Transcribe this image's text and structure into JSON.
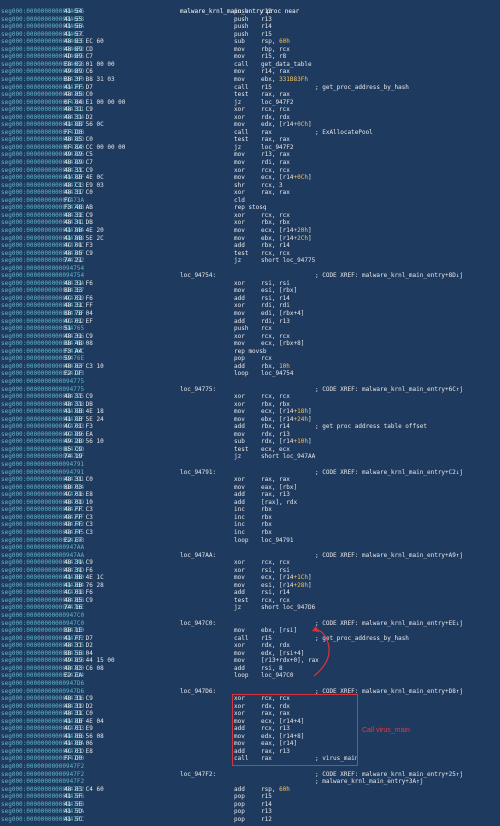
{
  "title": "malware_krnl_main_entry proc near",
  "annotation": "Call virus_main",
  "colors": {
    "background": "#1f3a5f",
    "address": "#5fb7c6",
    "number": "#f3c35d",
    "annotation": "#e33a43"
  },
  "lines": [
    {
      "a": "seg000:00000000000946E6",
      "b": "41 54",
      "m": "push",
      "o": "r12"
    },
    {
      "a": "seg000:00000000000946E8",
      "b": "41 55",
      "m": "push",
      "o": "r13"
    },
    {
      "a": "seg000:00000000000946EA",
      "b": "41 56",
      "m": "push",
      "o": "r14"
    },
    {
      "a": "seg000:00000000000946EC",
      "b": "41 57",
      "m": "push",
      "o": "r15"
    },
    {
      "a": "seg000:00000000000946EE",
      "b": "48 83 EC 60",
      "m": "sub",
      "o": "rsp, 60h"
    },
    {
      "a": "seg000:00000000000946F2",
      "b": "48 89 CD",
      "m": "mov",
      "o": "rbp, rcx"
    },
    {
      "a": "seg000:00000000000946F5",
      "b": "4D 89 C7",
      "m": "mov",
      "o": "r15, r8"
    },
    {
      "a": "seg000:00000000000946F8",
      "b": "E8 02 01 00 00",
      "m": "call",
      "o": "get_data_table"
    },
    {
      "a": "seg000:00000000000946FD",
      "b": "49 89 C6",
      "m": "mov",
      "o": "r14, rax"
    },
    {
      "a": "seg000:0000000000094700",
      "b": "BB 3F B8 31 03",
      "m": "mov",
      "o": "ebx, 331B83Fh"
    },
    {
      "a": "seg000:0000000000094705",
      "b": "41 FF D7",
      "m": "call",
      "o": "r15",
      "c": "; get_proc_address_by_hash"
    },
    {
      "a": "seg000:0000000000094708",
      "b": "48 85 C0",
      "m": "test",
      "o": "rax, rax"
    },
    {
      "a": "seg000:000000000009470B",
      "b": "0F 84 E1 00 00 00",
      "m": "jz",
      "o": "loc_947F2"
    },
    {
      "a": "seg000:0000000000094711",
      "b": "48 31 C9",
      "m": "xor",
      "o": "rcx, rcx"
    },
    {
      "a": "seg000:0000000000094714",
      "b": "48 31 D2",
      "m": "xor",
      "o": "rdx, rdx"
    },
    {
      "a": "seg000:0000000000094717",
      "b": "41 8B 56 0C",
      "m": "mov",
      "o": "edx, [r14+0Ch]"
    },
    {
      "a": "seg000:000000000009471B",
      "b": "FF D0",
      "m": "call",
      "o": "rax",
      "c": "; ExAllocatePool"
    },
    {
      "a": "seg000:000000000009471D",
      "b": "48 85 C0",
      "m": "test",
      "o": "rax, rax"
    },
    {
      "a": "seg000:0000000000094720",
      "b": "0F 84 CC 00 00 00",
      "m": "jz",
      "o": "loc_947F2"
    },
    {
      "a": "seg000:0000000000094726",
      "b": "49 89 C5",
      "m": "mov",
      "o": "r13, rax"
    },
    {
      "a": "seg000:0000000000094729",
      "b": "48 89 C7",
      "m": "mov",
      "o": "rdi, rax"
    },
    {
      "a": "seg000:000000000009472C",
      "b": "48 31 C9",
      "m": "xor",
      "o": "rcx, rcx"
    },
    {
      "a": "seg000:000000000009472F",
      "b": "41 8B 4E 0C",
      "m": "mov",
      "o": "ecx, [r14+0Ch]"
    },
    {
      "a": "seg000:0000000000094733",
      "b": "48 C1 E9 03",
      "m": "shr",
      "o": "rcx, 3"
    },
    {
      "a": "seg000:0000000000094737",
      "b": "48 31 C0",
      "m": "xor",
      "o": "rax, rax"
    },
    {
      "a": "seg000:000000000009473A",
      "b": "FC",
      "m": "cld"
    },
    {
      "a": "seg000:000000000009473B",
      "b": "F3 48 AB",
      "m": "rep stosq"
    },
    {
      "a": "seg000:000000000009473E",
      "b": "48 31 C9",
      "m": "xor",
      "o": "rcx, rcx"
    },
    {
      "a": "seg000:0000000000094741",
      "b": "48 31 DB",
      "m": "xor",
      "o": "rbx, rbx"
    },
    {
      "a": "seg000:0000000000094744",
      "b": "41 8B 4E 20",
      "m": "mov",
      "o": "ecx, [r14+20h]"
    },
    {
      "a": "seg000:0000000000094748",
      "b": "41 8B 5E 2C",
      "m": "mov",
      "o": "ebx, [r14+2Ch]"
    },
    {
      "a": "seg000:000000000009474C",
      "b": "4C 01 F3",
      "m": "add",
      "o": "rbx, r14"
    },
    {
      "a": "seg000:000000000009474F",
      "b": "48 85 C9",
      "m": "test",
      "o": "rcx, rcx"
    },
    {
      "a": "seg000:0000000000094752",
      "b": "74 21",
      "m": "jz",
      "o": "short loc_94775"
    },
    {
      "a": "seg000:0000000000094754",
      "b": ""
    },
    {
      "a": "seg000:0000000000094754",
      "l": "loc_94754:",
      "c": "; CODE XREF: malware_krnl_main_entry+8D↓j"
    },
    {
      "a": "seg000:0000000000094754",
      "b": "48 31 F6",
      "m": "xor",
      "o": "rsi, rsi"
    },
    {
      "a": "seg000:0000000000094757",
      "b": "8B 33",
      "m": "mov",
      "o": "esi, [rbx]"
    },
    {
      "a": "seg000:0000000000094759",
      "b": "4C 01 F6",
      "m": "add",
      "o": "rsi, r14"
    },
    {
      "a": "seg000:000000000009475C",
      "b": "48 31 FF",
      "m": "xor",
      "o": "rdi, rdi"
    },
    {
      "a": "seg000:000000000009475F",
      "b": "8B 7B 04",
      "m": "mov",
      "o": "edi, [rbx+4]"
    },
    {
      "a": "seg000:0000000000094762",
      "b": "4C 01 EF",
      "m": "add",
      "o": "rdi, r13"
    },
    {
      "a": "seg000:0000000000094765",
      "b": "51",
      "m": "push",
      "o": "rcx"
    },
    {
      "a": "seg000:0000000000094766",
      "b": "48 31 C9",
      "m": "xor",
      "o": "rcx, rcx"
    },
    {
      "a": "seg000:0000000000094769",
      "b": "8B 4B 08",
      "m": "mov",
      "o": "ecx, [rbx+8]"
    },
    {
      "a": "seg000:000000000009476C",
      "b": "F3 A4",
      "m": "rep movsb"
    },
    {
      "a": "seg000:000000000009476E",
      "b": "59",
      "m": "pop",
      "o": "rcx"
    },
    {
      "a": "seg000:000000000009476F",
      "b": "48 83 C3 10",
      "m": "add",
      "o": "rbx, 10h"
    },
    {
      "a": "seg000:0000000000094773",
      "b": "E2 DF",
      "m": "loop",
      "o": "loc_94754"
    },
    {
      "a": "seg000:0000000000094775",
      "b": ""
    },
    {
      "a": "seg000:0000000000094775",
      "l": "loc_94775:",
      "c": "; CODE XREF: malware_krnl_main_entry+6C↑j"
    },
    {
      "a": "seg000:0000000000094775",
      "b": "48 31 C9",
      "m": "xor",
      "o": "rcx, rcx"
    },
    {
      "a": "seg000:0000000000094778",
      "b": "48 31 DB",
      "m": "xor",
      "o": "rbx, rbx"
    },
    {
      "a": "seg000:000000000009477B",
      "b": "41 8B 4E 18",
      "m": "mov",
      "o": "ecx, [r14+18h]"
    },
    {
      "a": "seg000:000000000009477F",
      "b": "41 8B 5E 24",
      "m": "mov",
      "o": "ebx, [r14+24h]"
    },
    {
      "a": "seg000:0000000000094783",
      "b": "4C 01 F3",
      "m": "add",
      "o": "rbx, r14",
      "c": "; get proc address table offset"
    },
    {
      "a": "seg000:0000000000094786",
      "b": "4C 89 EA",
      "m": "mov",
      "o": "rdx, r13"
    },
    {
      "a": "seg000:0000000000094789",
      "b": "49 2B 56 10",
      "m": "sub",
      "o": "rdx, [r14+10h]"
    },
    {
      "a": "seg000:000000000009478D",
      "b": "85 C9",
      "m": "test",
      "o": "ecx, ecx"
    },
    {
      "a": "seg000:000000000009478F",
      "b": "74 19",
      "m": "jz",
      "o": "short loc_947AA"
    },
    {
      "a": "seg000:0000000000094791",
      "b": ""
    },
    {
      "a": "seg000:0000000000094791",
      "l": "loc_94791:",
      "c": "; CODE XREF: malware_krnl_main_entry+C2↓j"
    },
    {
      "a": "seg000:0000000000094791",
      "b": "48 31 C0",
      "m": "xor",
      "o": "rax, rax"
    },
    {
      "a": "seg000:0000000000094794",
      "b": "8B 03",
      "m": "mov",
      "o": "eax, [rbx]"
    },
    {
      "a": "seg000:0000000000094796",
      "b": "4C 01 E8",
      "m": "add",
      "o": "rax, r13"
    },
    {
      "a": "seg000:0000000000094799",
      "b": "48 01 10",
      "m": "add",
      "o": "[rax], rdx"
    },
    {
      "a": "seg000:000000000009479C",
      "b": "48 FF C3",
      "m": "inc",
      "o": "rbx"
    },
    {
      "a": "seg000:000000000009479F",
      "b": "48 FF C3",
      "m": "inc",
      "o": "rbx"
    },
    {
      "a": "seg000:00000000000947A2",
      "b": "48 FF C3",
      "m": "inc",
      "o": "rbx"
    },
    {
      "a": "seg000:00000000000947A5",
      "b": "48 FF C3",
      "m": "inc",
      "o": "rbx"
    },
    {
      "a": "seg000:00000000000947A8",
      "b": "E2 E7",
      "m": "loop",
      "o": "loc_94791"
    },
    {
      "a": "seg000:00000000000947AA",
      "b": ""
    },
    {
      "a": "seg000:00000000000947AA",
      "l": "loc_947AA:",
      "c": "; CODE XREF: malware_krnl_main_entry+A9↑j"
    },
    {
      "a": "seg000:00000000000947AA",
      "b": "48 31 C9",
      "m": "xor",
      "o": "rcx, rcx"
    },
    {
      "a": "seg000:00000000000947AD",
      "b": "48 31 F6",
      "m": "xor",
      "o": "rsi, rsi"
    },
    {
      "a": "seg000:00000000000947B0",
      "b": "41 8B 4E 1C",
      "m": "mov",
      "o": "ecx, [r14+1Ch]"
    },
    {
      "a": "seg000:00000000000947B4",
      "b": "41 8B 76 28",
      "m": "mov",
      "o": "esi, [r14+28h]"
    },
    {
      "a": "seg000:00000000000947B8",
      "b": "4C 01 F6",
      "m": "add",
      "o": "rsi, r14"
    },
    {
      "a": "seg000:00000000000947BB",
      "b": "48 85 C9",
      "m": "test",
      "o": "rcx, rcx"
    },
    {
      "a": "seg000:00000000000947BE",
      "b": "74 16",
      "m": "jz",
      "o": "short loc_947D6"
    },
    {
      "a": "seg000:00000000000947C0",
      "b": ""
    },
    {
      "a": "seg000:00000000000947C0",
      "l": "loc_947C0:",
      "c": "; CODE XREF: malware_krnl_main_entry+EE↓j"
    },
    {
      "a": "seg000:00000000000947C0",
      "b": "8B 1E",
      "m": "mov",
      "o": "ebx, [rsi]"
    },
    {
      "a": "seg000:00000000000947C2",
      "b": "41 FF D7",
      "m": "call",
      "o": "r15",
      "c": "; get_proc_address_by_hash"
    },
    {
      "a": "seg000:00000000000947C5",
      "b": "48 31 D2",
      "m": "xor",
      "o": "rdx, rdx"
    },
    {
      "a": "seg000:00000000000947C8",
      "b": "8B 56 04",
      "m": "mov",
      "o": "edx, [rsi+4]"
    },
    {
      "a": "seg000:00000000000947CB",
      "b": "49 89 44 15 00",
      "m": "mov",
      "o": "[r13+rdx+0], rax"
    },
    {
      "a": "seg000:00000000000947D0",
      "b": "48 83 C6 08",
      "m": "add",
      "o": "rsi, 8"
    },
    {
      "a": "seg000:00000000000947D4",
      "b": "E2 EA",
      "m": "loop",
      "o": "loc_947C0"
    },
    {
      "a": "seg000:00000000000947D6",
      "b": ""
    },
    {
      "a": "seg000:00000000000947D6",
      "l": "loc_947D6:",
      "c": "; CODE XREF: malware_krnl_main_entry+D8↑j"
    },
    {
      "a": "seg000:00000000000947D6",
      "b": "48 31 C9",
      "m": "xor",
      "o": "rcx, rcx"
    },
    {
      "a": "seg000:00000000000947D9",
      "b": "48 31 D2",
      "m": "xor",
      "o": "rdx, rdx"
    },
    {
      "a": "seg000:00000000000947DC",
      "b": "48 31 C0",
      "m": "xor",
      "o": "rax, rax"
    },
    {
      "a": "seg000:00000000000947DF",
      "b": "41 8B 4E 04",
      "m": "mov",
      "o": "ecx, [r14+4]"
    },
    {
      "a": "seg000:00000000000947E3",
      "b": "4C 01 E9",
      "m": "add",
      "o": "rcx, r13"
    },
    {
      "a": "seg000:00000000000947E6",
      "b": "41 8B 56 08",
      "m": "mov",
      "o": "edx, [r14+8]"
    },
    {
      "a": "seg000:00000000000947EA",
      "b": "41 8B 06",
      "m": "mov",
      "o": "eax, [r14]"
    },
    {
      "a": "seg000:00000000000947ED",
      "b": "4C 01 E8",
      "m": "add",
      "o": "rax, r13"
    },
    {
      "a": "seg000:00000000000947F0",
      "b": "FF D0",
      "m": "call",
      "o": "rax",
      "c": "; virus_main"
    },
    {
      "a": "seg000:00000000000947F2",
      "b": ""
    },
    {
      "a": "seg000:00000000000947F2",
      "l": "loc_947F2:",
      "c": "; CODE XREF: malware_krnl_main_entry+25↑j"
    },
    {
      "a": "seg000:00000000000947F2",
      "c": "; malware_krnl_main_entry+3A↑j"
    },
    {
      "a": "seg000:00000000000947F2",
      "b": "48 83 C4 60",
      "m": "add",
      "o": "rsp, 60h"
    },
    {
      "a": "seg000:00000000000947F6",
      "b": "41 5F",
      "m": "pop",
      "o": "r15"
    },
    {
      "a": "seg000:00000000000947F8",
      "b": "41 5E",
      "m": "pop",
      "o": "r14"
    },
    {
      "a": "seg000:00000000000947FA",
      "b": "41 5D",
      "m": "pop",
      "o": "r13"
    },
    {
      "a": "seg000:00000000000947FC",
      "b": "41 5C",
      "m": "pop",
      "o": "r12"
    }
  ]
}
